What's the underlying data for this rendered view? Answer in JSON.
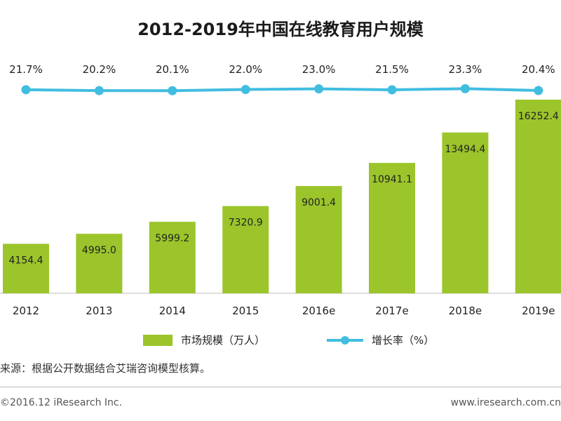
{
  "chart_data": {
    "type": "bar",
    "title": "2012-2019年中国在线教育用户规模",
    "categories": [
      "2012",
      "2013",
      "2014",
      "2015",
      "2016e",
      "2017e",
      "2018e",
      "2019e"
    ],
    "series": [
      {
        "name": "市场规模（万人）",
        "type": "bar",
        "values": [
          4154.4,
          4995.0,
          5999.2,
          7320.9,
          9001.4,
          10941.1,
          13494.4,
          16252.4
        ],
        "labels": [
          "4154.4",
          "4995.0",
          "5999.2",
          "7320.9",
          "9001.4",
          "10941.1",
          "13494.4",
          "16252.4"
        ]
      },
      {
        "name": "增长率（%）",
        "type": "line",
        "values": [
          21.7,
          20.2,
          20.1,
          22.0,
          23.0,
          21.5,
          23.3,
          20.4
        ],
        "labels": [
          "21.7%",
          "20.2%",
          "20.1%",
          "22.0%",
          "23.0%",
          "21.5%",
          "23.3%",
          "20.4%"
        ]
      }
    ],
    "legend_position": "bottom",
    "grid": false
  },
  "colors": {
    "bar": "#9bc52b",
    "line": "#41bde0"
  },
  "source": "来源：根据公开数据结合艾瑞咨询模型核算。",
  "copyright": "©2016.12 iResearch Inc.",
  "website": "www.iresearch.com.cn"
}
